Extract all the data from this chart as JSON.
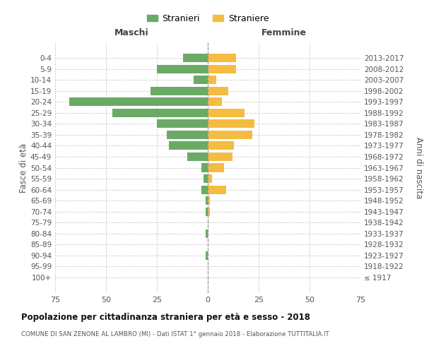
{
  "age_groups": [
    "100+",
    "95-99",
    "90-94",
    "85-89",
    "80-84",
    "75-79",
    "70-74",
    "65-69",
    "60-64",
    "55-59",
    "50-54",
    "45-49",
    "40-44",
    "35-39",
    "30-34",
    "25-29",
    "20-24",
    "15-19",
    "10-14",
    "5-9",
    "0-4"
  ],
  "birth_years": [
    "≤ 1917",
    "1918-1922",
    "1923-1927",
    "1928-1932",
    "1933-1937",
    "1938-1942",
    "1943-1947",
    "1948-1952",
    "1953-1957",
    "1958-1962",
    "1963-1967",
    "1968-1972",
    "1973-1977",
    "1978-1982",
    "1983-1987",
    "1988-1992",
    "1993-1997",
    "1998-2002",
    "2003-2007",
    "2008-2012",
    "2013-2017"
  ],
  "maschi": [
    0,
    0,
    1,
    0,
    1,
    0,
    1,
    1,
    3,
    2,
    3,
    10,
    19,
    20,
    25,
    47,
    68,
    28,
    7,
    25,
    12
  ],
  "femmine": [
    0,
    0,
    0,
    0,
    0,
    0,
    1,
    1,
    9,
    2,
    8,
    12,
    13,
    22,
    23,
    18,
    7,
    10,
    4,
    14,
    14
  ],
  "color_maschi": "#6aaa64",
  "color_femmine": "#f5bc42",
  "title": "Popolazione per cittadinanza straniera per età e sesso - 2018",
  "subtitle": "COMUNE DI SAN ZENONE AL LAMBRO (MI) - Dati ISTAT 1° gennaio 2018 - Elaborazione TUTTITALIA.IT",
  "ylabel_left": "Fasce di età",
  "ylabel_right": "Anni di nascita",
  "xlabel_left": "Maschi",
  "xlabel_right": "Femmine",
  "legend_maschi": "Stranieri",
  "legend_femmine": "Straniere",
  "xlim": 75,
  "xtick_step": 25,
  "background_color": "#ffffff",
  "grid_color": "#cccccc"
}
